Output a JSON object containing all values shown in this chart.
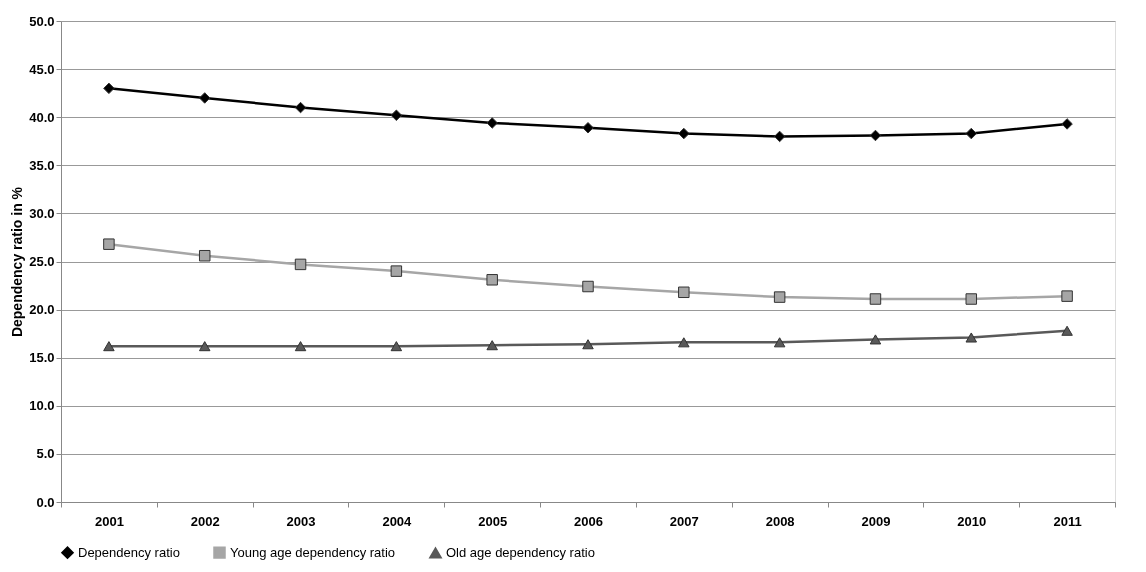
{
  "chart_data": {
    "type": "line",
    "ylabel": "Dependency ratio in %",
    "categories": [
      "2001",
      "2002",
      "2003",
      "2004",
      "2005",
      "2006",
      "2007",
      "2008",
      "2009",
      "2010",
      "2011"
    ],
    "series": [
      {
        "name": "Dependency ratio",
        "color": "#000000",
        "marker": "diamond",
        "values": [
          43.0,
          42.0,
          41.0,
          40.2,
          39.4,
          38.9,
          38.3,
          38.0,
          38.1,
          38.3,
          39.3
        ]
      },
      {
        "name": "Young age dependency ratio",
        "color": "#a6a6a6",
        "marker": "square",
        "values": [
          26.8,
          25.6,
          24.7,
          24.0,
          23.1,
          22.4,
          21.8,
          21.3,
          21.1,
          21.1,
          21.4
        ]
      },
      {
        "name": "Old age dependency ratio",
        "color": "#595959",
        "marker": "triangle",
        "values": [
          16.2,
          16.2,
          16.2,
          16.2,
          16.3,
          16.4,
          16.6,
          16.6,
          16.9,
          17.1,
          17.8
        ]
      }
    ],
    "ylim": [
      0,
      50
    ],
    "yticks": [
      {
        "value": 0,
        "label": "0.0"
      },
      {
        "value": 5,
        "label": "5.0"
      },
      {
        "value": 10,
        "label": "10.0"
      },
      {
        "value": 15,
        "label": "15.0"
      },
      {
        "value": 20,
        "label": "20.0"
      },
      {
        "value": 25,
        "label": "25.0"
      },
      {
        "value": 30,
        "label": "30.0"
      },
      {
        "value": 35,
        "label": "35.0"
      },
      {
        "value": 40,
        "label": "40.0"
      },
      {
        "value": 45,
        "label": "45.0"
      },
      {
        "value": 50,
        "label": "50.0"
      }
    ],
    "grid": "y",
    "legend": "bottom",
    "line_style": "solid"
  }
}
